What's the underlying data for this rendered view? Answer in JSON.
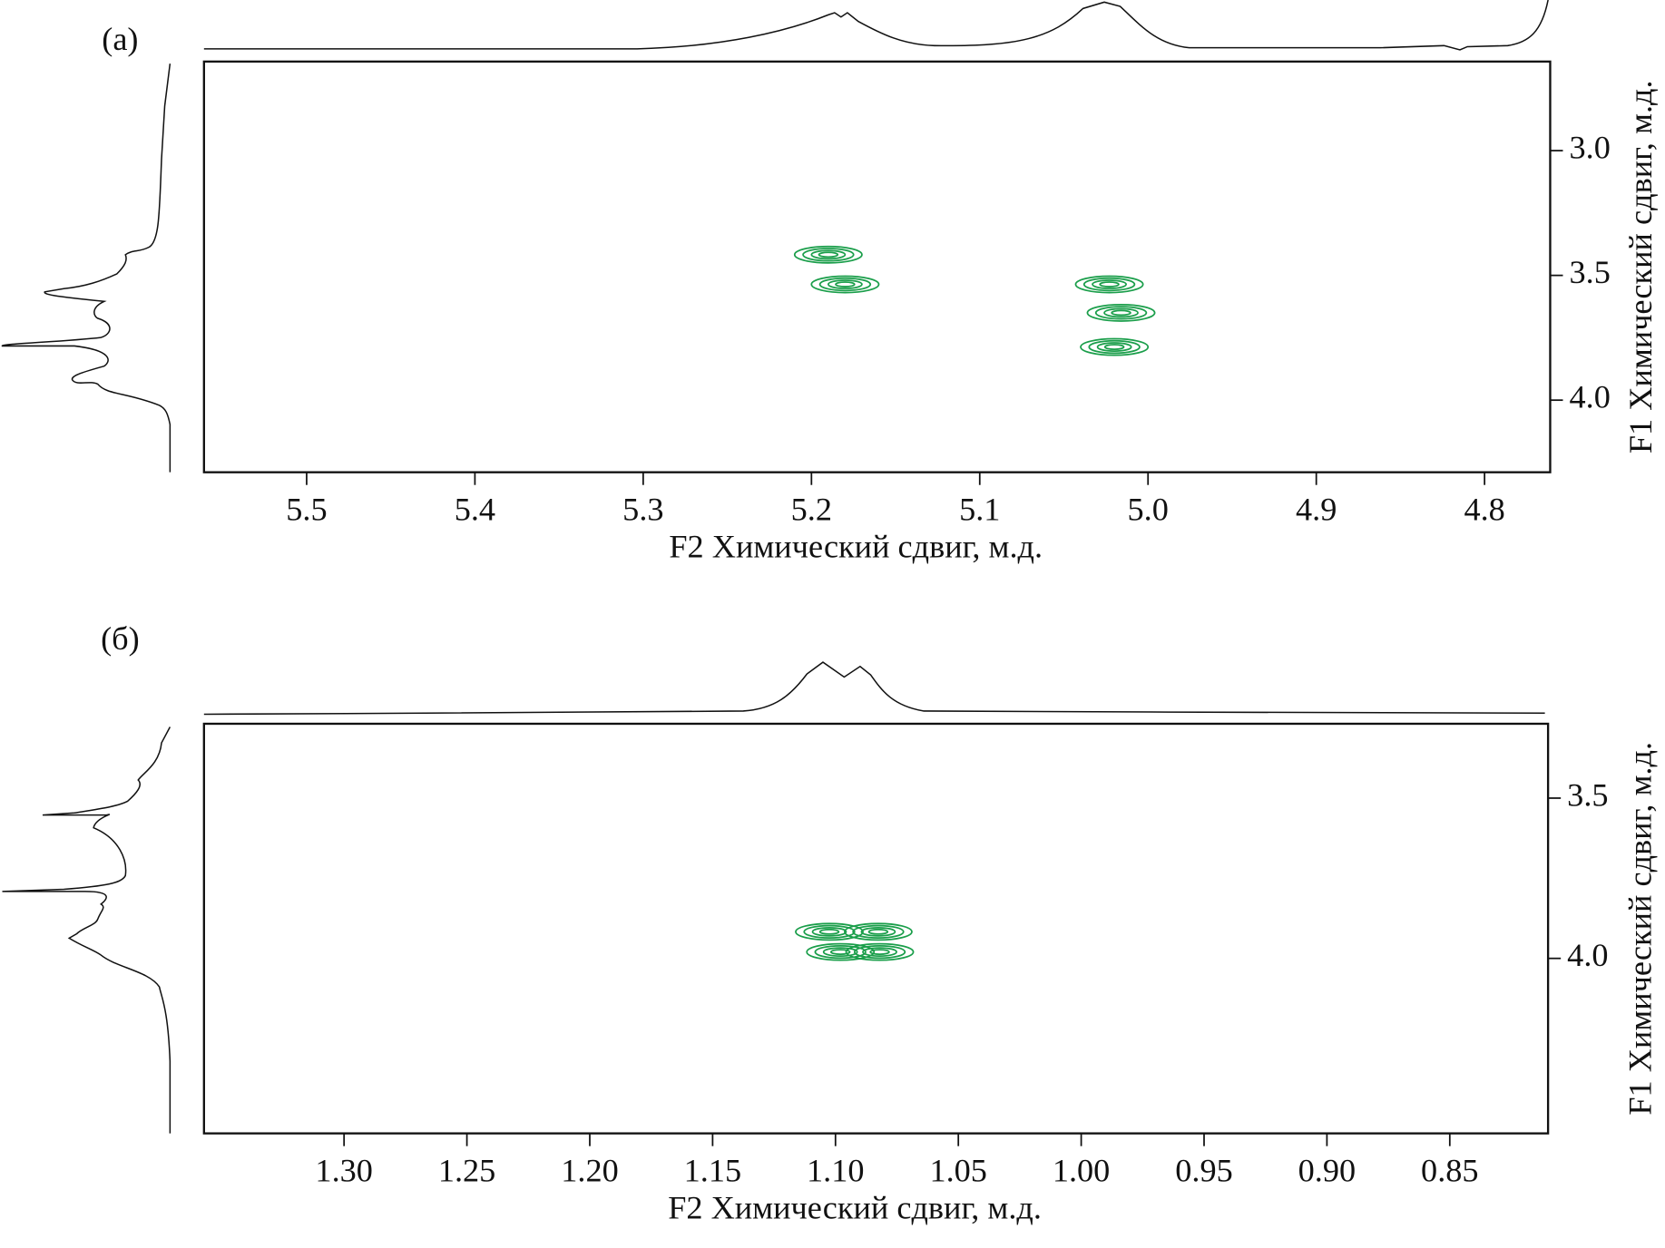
{
  "chart_data": [
    {
      "type": "contour",
      "panel_label": "(а)",
      "x_label": "F2 Химический сдвиг, м.д.",
      "y_label": "F1 Химический сдвиг, м.д.",
      "xlim": [
        5.561,
        4.761
      ],
      "ylim": [
        2.643,
        4.289
      ],
      "xticks": [
        5.5,
        5.4,
        5.3,
        5.2,
        5.1,
        {
          "value": 5,
          "label": "5.0"
        },
        4.9,
        4.8
      ],
      "yticks": [
        {
          "value": 3,
          "label": "3.0"
        },
        3.5,
        {
          "value": 4,
          "label": "4.0"
        }
      ],
      "color": "#1a9e4a",
      "peaks": {
        "x": [
          5.18,
          5.19,
          5.023,
          5.016,
          5.02
        ],
        "y": [
          3.536,
          3.417,
          3.536,
          3.65,
          3.787
        ]
      }
    },
    {
      "type": "contour",
      "panel_label": "(б)",
      "x_label": "F2 Химический сдвиг, м.д.",
      "y_label": "F1 Химический сдвиг, м.д.",
      "xlim": [
        1.357,
        0.81
      ],
      "ylim": [
        3.268,
        4.546
      ],
      "xticks": [
        {
          "value": 1.3,
          "label": "1.30"
        },
        1.25,
        {
          "value": 1.2,
          "label": "1.20"
        },
        1.15,
        {
          "value": 1.1,
          "label": "1.10"
        },
        1.05,
        {
          "value": 1,
          "label": "1.00"
        },
        0.95,
        {
          "value": 0.9,
          "label": "0.90"
        },
        0.85
      ],
      "yticks": [
        3.5,
        {
          "value": 4,
          "label": "4.0"
        }
      ],
      "color": "#1a9e4a",
      "peaks": {
        "x": [
          1.1025,
          1.0826,
          1.098,
          1.082
        ],
        "y": [
          3.917,
          3.917,
          3.98,
          3.98
        ]
      }
    }
  ]
}
